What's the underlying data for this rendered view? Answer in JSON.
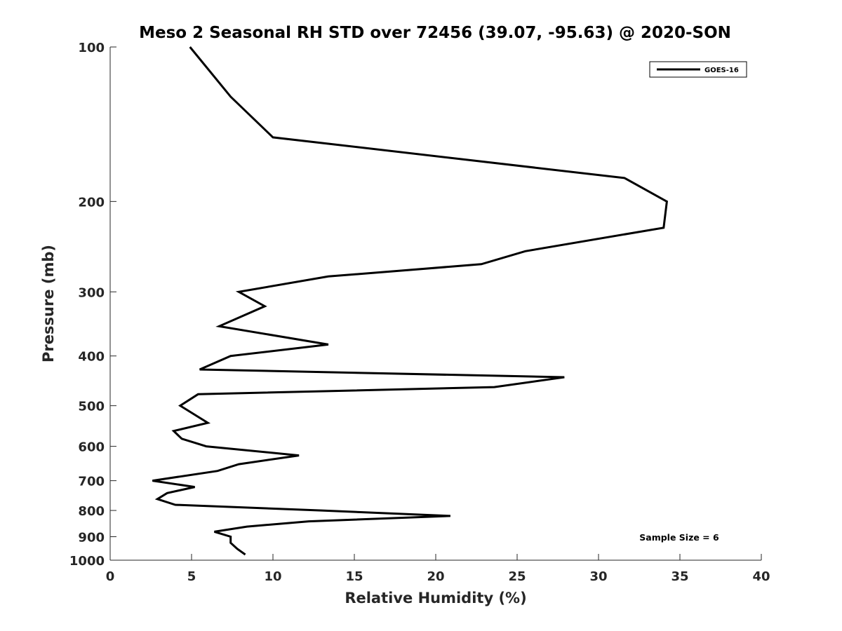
{
  "chart_data": {
    "type": "line",
    "title": "Meso 2 Seasonal RH STD over 72456 (39.07, -95.63) @ 2020-SON",
    "xlabel": "Relative Humidity (%)",
    "ylabel": "Pressure (mb)",
    "xlim": [
      0,
      40
    ],
    "ylim": [
      100,
      1000
    ],
    "y_scale": "log",
    "y_reversed": true,
    "x_ticks": [
      0,
      5,
      10,
      15,
      20,
      25,
      30,
      35,
      40
    ],
    "y_ticks": [
      100,
      200,
      300,
      400,
      500,
      600,
      700,
      800,
      900,
      1000
    ],
    "grid": false,
    "legend": {
      "position": "top-right",
      "entries": [
        "GOES-16"
      ]
    },
    "annotation": "Sample Size = 6",
    "series": [
      {
        "name": "GOES-16",
        "color": "#000000",
        "points": [
          [
            4.9,
            100
          ],
          [
            7.4,
            125
          ],
          [
            10.0,
            150
          ],
          [
            31.6,
            180
          ],
          [
            34.2,
            200
          ],
          [
            34.0,
            225
          ],
          [
            25.5,
            250
          ],
          [
            22.8,
            265
          ],
          [
            13.4,
            280
          ],
          [
            7.9,
            300
          ],
          [
            9.5,
            320
          ],
          [
            6.7,
            350
          ],
          [
            13.4,
            380
          ],
          [
            7.4,
            400
          ],
          [
            5.5,
            425
          ],
          [
            27.9,
            440
          ],
          [
            23.6,
            460
          ],
          [
            5.4,
            475
          ],
          [
            4.3,
            500
          ],
          [
            6.0,
            540
          ],
          [
            3.9,
            560
          ],
          [
            4.4,
            580
          ],
          [
            5.9,
            600
          ],
          [
            11.6,
            625
          ],
          [
            7.9,
            650
          ],
          [
            6.6,
            670
          ],
          [
            2.6,
            700
          ],
          [
            5.2,
            720
          ],
          [
            3.5,
            740
          ],
          [
            2.9,
            760
          ],
          [
            4.0,
            780
          ],
          [
            13.0,
            800
          ],
          [
            20.9,
            820
          ],
          [
            12.2,
            840
          ],
          [
            8.4,
            860
          ],
          [
            6.4,
            880
          ],
          [
            7.4,
            900
          ],
          [
            7.4,
            925
          ],
          [
            7.8,
            950
          ],
          [
            8.3,
            975
          ]
        ]
      }
    ]
  }
}
